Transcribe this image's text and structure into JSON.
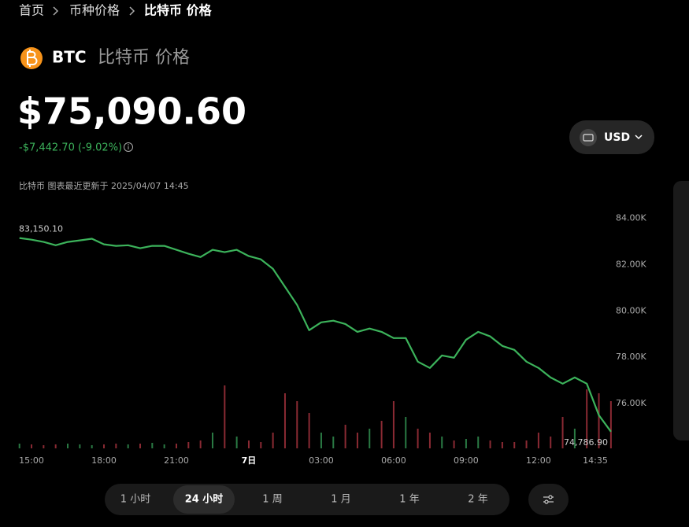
{
  "breadcrumb": [
    "首页",
    "币种价格",
    "比特币 价格"
  ],
  "header": {
    "symbol": "BTC",
    "name": "比特币 价格",
    "price": "$75,090.60",
    "change": "-$7,442.70 (-9.02%)",
    "updated": "比特币 图表最近更新于 2025/04/07 14:45",
    "currency": "USD"
  },
  "tabs": [
    "1 小时",
    "24 小时",
    "1 周",
    "1 月",
    "1 年",
    "2 年"
  ],
  "active_tab": 1,
  "chart_data": {
    "type": "line",
    "categories": [
      null,
      "15:00",
      null,
      null,
      null,
      null,
      null,
      "18:00",
      null,
      null,
      null,
      null,
      null,
      "21:00",
      null,
      null,
      null,
      null,
      null,
      "7日",
      null,
      null,
      null,
      null,
      null,
      "03:00",
      null,
      null,
      null,
      null,
      null,
      "06:00",
      null,
      null,
      null,
      null,
      null,
      "09:00",
      null,
      null,
      null,
      null,
      null,
      "12:00",
      null,
      null,
      null,
      null,
      null,
      "14:35"
    ],
    "series": [
      {
        "color": "#3cb35b",
        "values": [
          83150,
          83080,
          82980,
          82840,
          82980,
          83050,
          83120,
          82880,
          82810,
          82840,
          82710,
          82810,
          82810,
          82640,
          82470,
          82330,
          82640,
          82540,
          82640,
          82370,
          82230,
          81820,
          81040,
          80260,
          79170,
          79510,
          79580,
          79440,
          79100,
          79240,
          79100,
          78830,
          78830,
          77810,
          77540,
          78080,
          77980,
          78760,
          79100,
          78900,
          78490,
          78320,
          77810,
          77540,
          77130,
          76860,
          77130,
          76860,
          75500,
          74786.9
        ]
      }
    ],
    "annotations": [
      {
        "value": 83150.1,
        "label": "83,150.10",
        "index": 0
      },
      {
        "value": 74786.9,
        "label": "74,786.90",
        "index": 49
      }
    ],
    "ylim": [
      74000,
      84700
    ],
    "yticks": [
      {
        "value": 76000,
        "label": "76.00K"
      },
      {
        "value": 78000,
        "label": "78.00K"
      },
      {
        "value": 80000,
        "label": "80.00K"
      },
      {
        "value": 82000,
        "label": "82.00K"
      },
      {
        "value": 84000,
        "label": "84.00K"
      }
    ],
    "volume": {
      "ylim": [
        0,
        100
      ],
      "up_color": "#2a7a44",
      "down_color": "#8a2a33",
      "values": [
        6,
        5,
        4,
        5,
        6,
        5,
        4,
        5,
        6,
        5,
        6,
        7,
        5,
        6,
        8,
        10,
        20,
        80,
        15,
        10,
        8,
        20,
        70,
        60,
        45,
        20,
        15,
        30,
        20,
        25,
        35,
        60,
        40,
        25,
        20,
        15,
        10,
        12,
        15,
        10,
        8,
        8,
        10,
        20,
        15,
        40,
        25,
        75,
        70,
        60
      ]
    }
  }
}
